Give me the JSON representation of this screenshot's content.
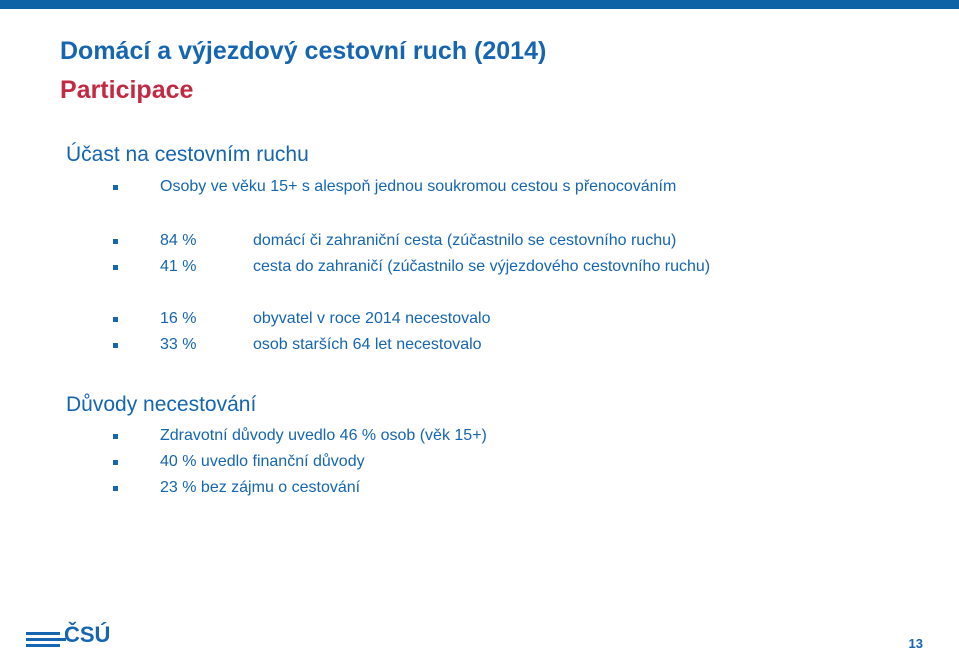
{
  "title": "Domácí a výjezdový cestovní ruch (2014)",
  "subtitle": "Participace",
  "section1": {
    "heading": "Účast na cestovním ruchu",
    "intro": "Osoby ve věku 15+ s alespoň jednou soukromou cestou s přenocováním",
    "group1": [
      {
        "pct": "84 %",
        "text": "domácí či zahraniční cesta (zúčastnilo se cestovního ruchu)"
      },
      {
        "pct": "41 %",
        "text": "cesta do zahraničí (zúčastnilo se výjezdového cestovního ruchu)"
      }
    ],
    "group2": [
      {
        "pct": "16 %",
        "text": "obyvatel v roce 2014 necestovalo"
      },
      {
        "pct": "33 %",
        "text": "osob starších 64 let necestovalo"
      }
    ]
  },
  "section2": {
    "heading": "Důvody necestování",
    "items": [
      "Zdravotní důvody uvedlo 46 % osob (věk 15+)",
      "40 % uvedlo finanční důvody",
      "23 % bez zájmu o cestování"
    ]
  },
  "logo_text": "ČSÚ",
  "page_number": "13",
  "colors": {
    "accent": "#1565b0",
    "subtitle": "#c22a44",
    "top_bar": "#0e63a6"
  }
}
